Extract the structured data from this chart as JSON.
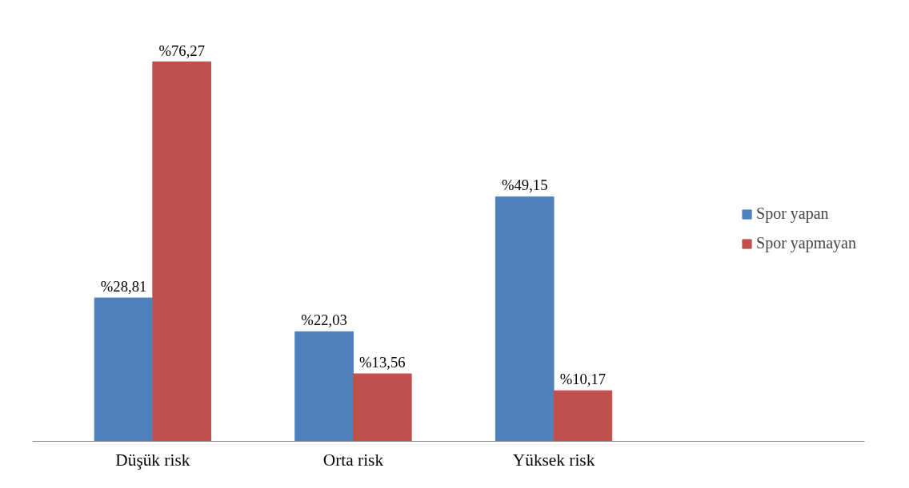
{
  "chart_data": {
    "type": "bar",
    "categories": [
      "Düşük risk",
      "Orta risk",
      "Yüksek risk"
    ],
    "series": [
      {
        "name": "Spor yapan",
        "color": "#4f81bd",
        "values": [
          28.81,
          22.03,
          49.15
        ],
        "value_labels": [
          "%28,81",
          "%22,03",
          "%49,15"
        ]
      },
      {
        "name": "Spor yapmayan",
        "color": "#c0504d",
        "values": [
          76.27,
          13.56,
          10.17
        ],
        "value_labels": [
          "%76,27",
          "%13,56",
          "%10,17"
        ]
      }
    ],
    "legend": "right",
    "grid": false
  }
}
